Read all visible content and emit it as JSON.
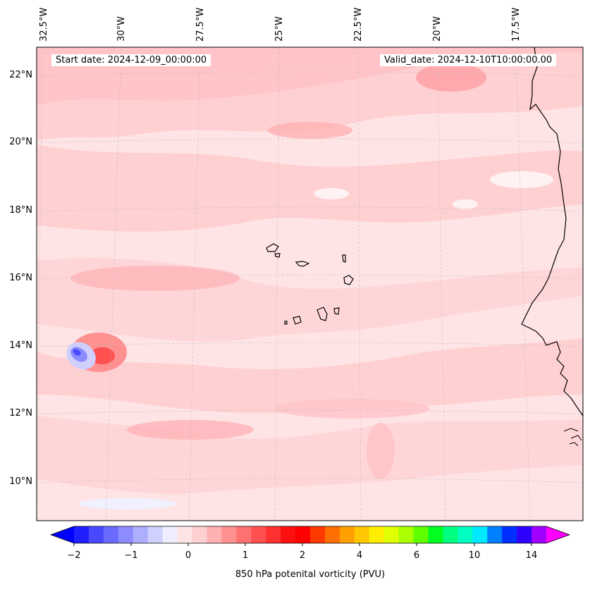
{
  "map": {
    "start_date_label": "Start date: 2024-12-09_00:00:00",
    "valid_date_label": "Valid_date: 2024-12-10T10:00:00.00",
    "longitude_labels": [
      "32.5°W",
      "30°W",
      "27.5°W",
      "25°W",
      "22.5°W",
      "20°W",
      "17.5°W"
    ],
    "latitude_labels": [
      "22°N",
      "20°N",
      "18°N",
      "16°N",
      "14°N",
      "12°N",
      "10°N"
    ],
    "background_field_color": "#ffe4e6",
    "coastline_color": "#000000"
  },
  "colorbar": {
    "title": "850 hPa potenital vorticity (PVU)",
    "tick_labels": [
      "−2",
      "−1",
      "0",
      "1",
      "2",
      "4",
      "6",
      "10",
      "14"
    ],
    "colors": [
      "#0000ff",
      "#2020ff",
      "#4848ff",
      "#6a6aff",
      "#8c8cff",
      "#aeaeff",
      "#d0d0ff",
      "#eeeeff",
      "#ffe4e6",
      "#ffd0d2",
      "#ffb0b2",
      "#ff9090",
      "#ff7070",
      "#ff5050",
      "#ff3030",
      "#ff1010",
      "#ff0000",
      "#ff3a00",
      "#ff6e00",
      "#ffa000",
      "#ffc800",
      "#ffee00",
      "#e0ff00",
      "#aaff00",
      "#60ff00",
      "#00ff20",
      "#00ff80",
      "#00ffc0",
      "#00e8ff",
      "#0080ff",
      "#0030ff",
      "#3000ff",
      "#a000ff",
      "#ff00ff"
    ]
  }
}
